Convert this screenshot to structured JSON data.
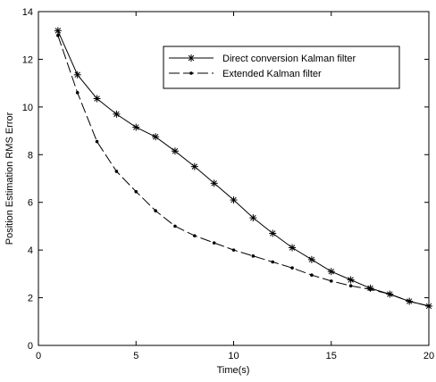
{
  "chart_data": {
    "type": "line",
    "title": "",
    "xlabel": "Time(s)",
    "ylabel": "Position Estimation RMS Error",
    "xlim": [
      0,
      20
    ],
    "ylim": [
      0,
      14
    ],
    "xticks": [
      0,
      5,
      10,
      15,
      20
    ],
    "yticks": [
      0,
      2,
      4,
      6,
      8,
      10,
      12,
      14
    ],
    "grid": false,
    "legend_position": "top-right",
    "series": [
      {
        "name": "Direct conversion Kalman filter",
        "marker": "asterisk",
        "line": "solid",
        "color": "#000000",
        "x": [
          1,
          2,
          3,
          4,
          5,
          6,
          7,
          8,
          9,
          10,
          11,
          12,
          13,
          14,
          15,
          16,
          17,
          18,
          19,
          20
        ],
        "y": [
          13.2,
          11.35,
          10.35,
          9.7,
          9.15,
          8.75,
          8.15,
          7.5,
          6.8,
          6.1,
          5.35,
          4.7,
          4.1,
          3.6,
          3.1,
          2.75,
          2.4,
          2.15,
          1.85,
          1.65
        ]
      },
      {
        "name": "Extended Kalman filter",
        "marker": "dot",
        "line": "dashed",
        "color": "#000000",
        "x": [
          1,
          2,
          3,
          4,
          5,
          6,
          7,
          8,
          9,
          10,
          11,
          12,
          13,
          14,
          15,
          16,
          17,
          18,
          19,
          20
        ],
        "y": [
          13.0,
          10.6,
          8.55,
          7.3,
          6.45,
          5.65,
          5.0,
          4.6,
          4.3,
          4.0,
          3.75,
          3.5,
          3.25,
          2.95,
          2.7,
          2.5,
          2.35,
          2.15,
          1.85,
          1.65
        ]
      }
    ]
  }
}
